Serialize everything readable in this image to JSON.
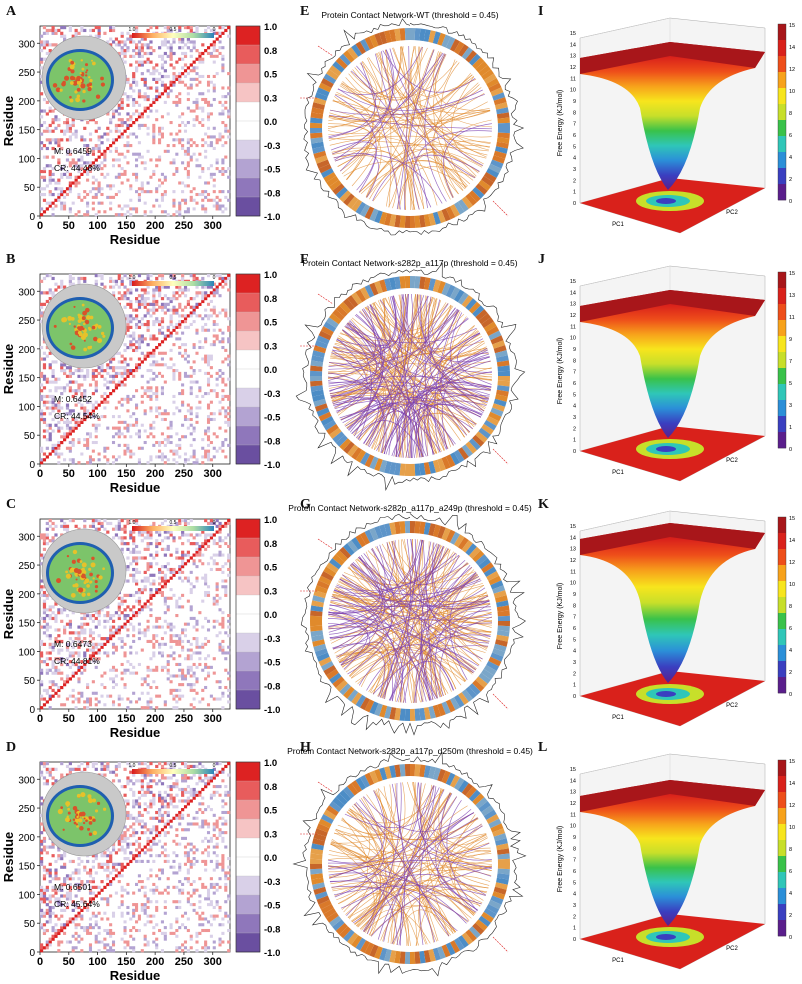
{
  "panel_labels": {
    "dccm": [
      "A",
      "B",
      "C",
      "D"
    ],
    "network": [
      "E",
      "F",
      "G",
      "H"
    ],
    "fel": [
      "I",
      "J",
      "K",
      "L"
    ]
  },
  "colors": {
    "dccm_scale": [
      "#6a4fa0",
      "#8f77bb",
      "#b3a3d2",
      "#d9d0e8",
      "#ffffff",
      "#ffffff",
      "#f6c4c4",
      "#ef9595",
      "#e85c5c",
      "#dd2222"
    ],
    "network_orange": "#e08a2c",
    "network_purple": "#7b3fb0",
    "fel_scale": [
      "#5a1e8c",
      "#3a3fc0",
      "#2b8fd8",
      "#2fc6b8",
      "#39c24a",
      "#c7df2a",
      "#f7e51d",
      "#f7a21b",
      "#ee4e1a",
      "#d9211b",
      "#a8161a"
    ]
  },
  "chart_data": [
    {
      "type": "heatmap",
      "panel": "A",
      "xlabel": "Residue",
      "ylabel": "Residue",
      "xticks": [
        "0",
        "50",
        "100",
        "150",
        "200",
        "250",
        "300"
      ],
      "yticks": [
        "0",
        "50",
        "100",
        "150",
        "200",
        "250",
        "300"
      ],
      "xlim": [
        0,
        330
      ],
      "ylim": [
        0,
        330
      ],
      "colorbar_ticks": [
        "1.0",
        "0.8",
        "0.5",
        "0.3",
        "0.0",
        "-0.3",
        "-0.5",
        "-0.8",
        "-1.0"
      ],
      "inset_scale": [
        "1.0",
        "0.5",
        "0"
      ],
      "annotations": [
        "M: 0.6459",
        "CR: 44.48%"
      ]
    },
    {
      "type": "heatmap",
      "panel": "B",
      "xlabel": "Residue",
      "ylabel": "Residue",
      "xticks": [
        "0",
        "50",
        "100",
        "150",
        "200",
        "250",
        "300"
      ],
      "yticks": [
        "0",
        "50",
        "100",
        "150",
        "200",
        "250",
        "300"
      ],
      "xlim": [
        0,
        330
      ],
      "ylim": [
        0,
        330
      ],
      "colorbar_ticks": [
        "1.0",
        "0.8",
        "0.5",
        "0.3",
        "0.0",
        "-0.3",
        "-0.5",
        "-0.8",
        "-1.0"
      ],
      "inset_scale": [
        "1.0",
        "0.5",
        "0"
      ],
      "annotations": [
        "M: 0.6452",
        "CR: 44.54%"
      ]
    },
    {
      "type": "heatmap",
      "panel": "C",
      "xlabel": "Residue",
      "ylabel": "Residue",
      "xticks": [
        "0",
        "50",
        "100",
        "150",
        "200",
        "250",
        "300"
      ],
      "yticks": [
        "0",
        "50",
        "100",
        "150",
        "200",
        "250",
        "300"
      ],
      "xlim": [
        0,
        330
      ],
      "ylim": [
        0,
        330
      ],
      "colorbar_ticks": [
        "1.0",
        "0.8",
        "0.5",
        "0.3",
        "0.0",
        "-0.3",
        "-0.5",
        "-0.8",
        "-1.0"
      ],
      "inset_scale": [
        "1.0",
        "0.5",
        "0"
      ],
      "annotations": [
        "M: 0.6473",
        "CR: 44.81%"
      ]
    },
    {
      "type": "heatmap",
      "panel": "D",
      "xlabel": "Residue",
      "ylabel": "Residue",
      "xticks": [
        "0",
        "50",
        "100",
        "150",
        "200",
        "250",
        "300"
      ],
      "yticks": [
        "0",
        "50",
        "100",
        "150",
        "200",
        "250",
        "300"
      ],
      "xlim": [
        0,
        330
      ],
      "ylim": [
        0,
        330
      ],
      "colorbar_ticks": [
        "1.0",
        "0.8",
        "0.5",
        "0.3",
        "0.0",
        "-0.3",
        "-0.5",
        "-0.8",
        "-1.0"
      ],
      "inset_scale": [
        "1.0",
        "0.5",
        "0"
      ],
      "annotations": [
        "M: 0.6501",
        "CR: 45.64%"
      ]
    },
    {
      "type": "network",
      "panel": "E",
      "title": "Protein Contact Network-WT    (threshold = 0.45)"
    },
    {
      "type": "network",
      "panel": "F",
      "title": "Protein Contact Network-s282p_a117p    (threshold = 0.45)"
    },
    {
      "type": "network",
      "panel": "G",
      "title": "Protein Contact Network-s282p_a117p_a249p    (threshold = 0.45)"
    },
    {
      "type": "network",
      "panel": "H",
      "title": "Protein Contact Network-s282p_a117p_d250m    (threshold = 0.45)"
    },
    {
      "type": "area",
      "panel": "I",
      "zlabel": "Free Energy (KJ/mol)",
      "xlabel": "PC1",
      "ylabel": "PC2",
      "zticks": [
        "0",
        "1",
        "2",
        "3",
        "4",
        "5",
        "6",
        "7",
        "8",
        "9",
        "10",
        "11",
        "12",
        "13",
        "14",
        "15"
      ],
      "colorbar_ticks": [
        "15",
        "14",
        "12",
        "10",
        "8",
        "6",
        "4",
        "2",
        "0"
      ]
    },
    {
      "type": "area",
      "panel": "J",
      "zlabel": "Free Energy (KJ/mol)",
      "xlabel": "PC1",
      "ylabel": "PC2",
      "zticks": [
        "0",
        "1",
        "2",
        "3",
        "4",
        "5",
        "6",
        "7",
        "8",
        "9",
        "10",
        "11",
        "12",
        "13",
        "14",
        "15"
      ],
      "colorbar_ticks": [
        "15",
        "13",
        "11",
        "9",
        "7",
        "5",
        "3",
        "1",
        "0"
      ]
    },
    {
      "type": "area",
      "panel": "K",
      "zlabel": "Free Energy (KJ/mol)",
      "xlabel": "PC1",
      "ylabel": "PC2",
      "zticks": [
        "0",
        "1",
        "2",
        "3",
        "4",
        "5",
        "6",
        "7",
        "8",
        "9",
        "10",
        "11",
        "12",
        "13",
        "14",
        "15"
      ],
      "colorbar_ticks": [
        "15",
        "14",
        "12",
        "10",
        "8",
        "6",
        "4",
        "2",
        "0"
      ]
    },
    {
      "type": "area",
      "panel": "L",
      "zlabel": "Free Energy (KJ/mol)",
      "xlabel": "PC1",
      "ylabel": "PC2",
      "zticks": [
        "0",
        "1",
        "2",
        "3",
        "4",
        "5",
        "6",
        "7",
        "8",
        "9",
        "10",
        "11",
        "12",
        "13",
        "14",
        "15"
      ],
      "colorbar_ticks": [
        "15",
        "14",
        "12",
        "10",
        "8",
        "6",
        "4",
        "2",
        "0"
      ]
    }
  ]
}
